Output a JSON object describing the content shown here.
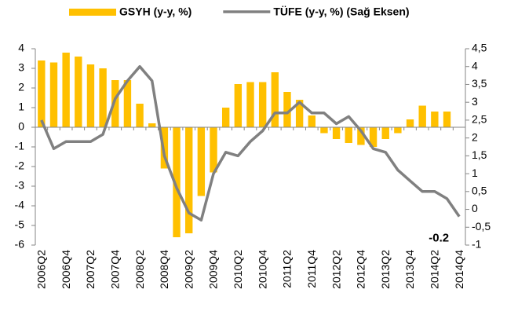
{
  "chart_data": {
    "type": "bar_line",
    "categories": [
      "2006Q2",
      null,
      "2006Q4",
      null,
      "2007Q2",
      null,
      "2007Q4",
      null,
      "2008Q2",
      null,
      "2008Q4",
      null,
      "2009Q2",
      null,
      "2009Q4",
      null,
      "2010Q2",
      null,
      "2010Q4",
      null,
      "2011Q2",
      null,
      "2011Q4",
      null,
      "2012Q2",
      null,
      "2012Q4",
      null,
      "2013Q2",
      null,
      "2013Q4",
      null,
      "2014Q2",
      null,
      "2014Q4"
    ],
    "series": [
      {
        "name": "GSYH (y-y, %)",
        "type": "bar",
        "color": "#FFC000",
        "values": [
          3.4,
          3.3,
          3.8,
          3.6,
          3.2,
          3.0,
          2.4,
          2.4,
          1.2,
          0.2,
          -2.1,
          -5.6,
          -5.4,
          -3.5,
          -2.3,
          1.0,
          2.2,
          2.3,
          2.3,
          2.8,
          1.8,
          1.4,
          0.6,
          -0.3,
          -0.6,
          -0.8,
          -0.9,
          -1.0,
          -0.6,
          -0.3,
          0.4,
          1.1,
          0.8,
          0.8,
          null
        ]
      },
      {
        "name": "TÜFE (y-y, %) (Sağ Eksen)",
        "type": "line",
        "axis": "y2",
        "color": "#808080",
        "values": [
          2.5,
          1.7,
          1.9,
          1.9,
          1.9,
          2.1,
          3.1,
          3.6,
          4.0,
          3.6,
          1.5,
          0.6,
          -0.1,
          -0.3,
          1.0,
          1.6,
          1.5,
          1.9,
          2.2,
          2.7,
          2.7,
          3.0,
          2.7,
          2.7,
          2.4,
          2.6,
          2.2,
          1.7,
          1.6,
          1.1,
          0.8,
          0.5,
          0.5,
          0.3,
          -0.2
        ],
        "value_labels": [
          null,
          null,
          null,
          null,
          null,
          null,
          null,
          null,
          null,
          null,
          null,
          null,
          null,
          null,
          null,
          null,
          null,
          null,
          null,
          null,
          null,
          null,
          null,
          null,
          null,
          null,
          null,
          null,
          null,
          null,
          null,
          null,
          null,
          null,
          "-0.2"
        ]
      }
    ],
    "ylim": [
      -6,
      4
    ],
    "yticks": [
      -6,
      -5,
      -4,
      -3,
      -2,
      -1,
      0,
      1,
      2,
      3,
      4
    ],
    "y2lim": [
      -1,
      4.5
    ],
    "y2ticks": [
      -1,
      {
        "value": -0.5,
        "label": "-0,5"
      },
      0,
      {
        "value": 0.5,
        "label": "0,5"
      },
      1,
      {
        "value": 1.5,
        "label": "1,5"
      },
      2,
      {
        "value": 2.5,
        "label": "2,5"
      },
      3,
      {
        "value": 3.5,
        "label": "3,5"
      },
      4,
      {
        "value": 4.5,
        "label": "4,5"
      }
    ],
    "legend": "top"
  }
}
